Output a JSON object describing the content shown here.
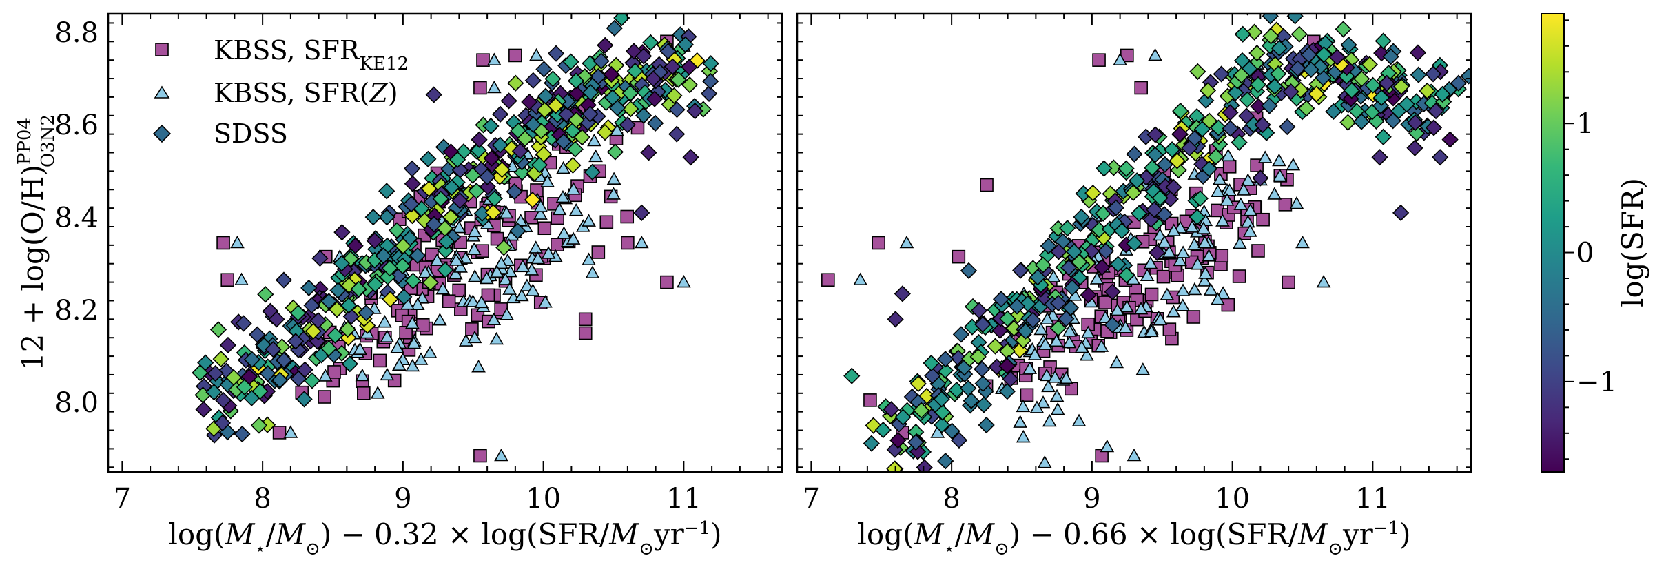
{
  "figure": {
    "description_domain": "Chart",
    "shared_ylabel": "12 + log(O/H)",
    "ylabel_sup": "PP04",
    "ylabel_sub": "O3N2",
    "colorbar": {
      "label": "log(SFR)",
      "range": [
        -1.7,
        1.85
      ],
      "ticks": [
        -1,
        0,
        1
      ],
      "tick_labels": [
        "−1",
        "0",
        "1"
      ],
      "colormap_stops": [
        "#440154",
        "#482878",
        "#3e4989",
        "#31688e",
        "#26828e",
        "#1f9e89",
        "#35b779",
        "#6ece58",
        "#b5de2b",
        "#fde725"
      ]
    },
    "legend": {
      "placement": "top-left",
      "entries": [
        {
          "marker": "square",
          "main": "KBSS, SFR",
          "sub": "KE12",
          "color": "#a6519b"
        },
        {
          "marker": "triangle",
          "main": "KBSS, SFR(",
          "ital": "Z",
          "tail": ")",
          "color": "#8fcbe6"
        },
        {
          "marker": "diamond",
          "main": "SDSS",
          "color": "#2f6b8e"
        }
      ]
    }
  },
  "chart_data": [
    {
      "type": "scatter",
      "panel": "left",
      "xlabel": "log(M★/M⊙) − 0.32 × log(SFR/M⊙yr⁻¹)",
      "xlabel_parts": {
        "a": "log(",
        "m1": "M",
        "star": "⋆",
        "s1": "/",
        "m2": "M",
        "sun": "⊙",
        "b": ") − 0.32 × log(SFR/",
        "m3": "M",
        "sun2": "⊙",
        "c": "yr",
        "sup": "−1",
        "d": ")"
      },
      "xlim": [
        6.9,
        11.7
      ],
      "ylim": [
        7.85,
        8.84
      ],
      "xticks": [
        7,
        8,
        9,
        10,
        11
      ],
      "xtick_labels": [
        "7",
        "8",
        "9",
        "10",
        "11"
      ],
      "yticks": [
        8.0,
        8.2,
        8.4,
        8.6,
        8.8
      ],
      "ytick_labels": [
        "8.0",
        "8.2",
        "8.4",
        "8.6",
        "8.8"
      ],
      "kbss_ke12_highlight": [
        [
          7.72,
          8.345
        ],
        [
          7.75,
          8.265
        ],
        [
          8.12,
          7.935
        ],
        [
          8.45,
          8.315
        ],
        [
          8.72,
          8.02
        ],
        [
          9.55,
          7.885
        ],
        [
          9.57,
          8.74
        ],
        [
          9.55,
          8.68
        ],
        [
          9.8,
          8.75
        ],
        [
          10.15,
          8.575
        ],
        [
          10.3,
          8.15
        ],
        [
          10.3,
          8.18
        ],
        [
          10.4,
          8.5
        ],
        [
          10.45,
          8.39
        ],
        [
          10.6,
          8.345
        ],
        [
          10.88,
          8.78
        ],
        [
          10.88,
          8.26
        ]
      ],
      "kbss_sfrz_highlight": [
        [
          7.82,
          8.345
        ],
        [
          7.85,
          8.265
        ],
        [
          8.2,
          7.935
        ],
        [
          8.55,
          8.315
        ],
        [
          8.82,
          8.02
        ],
        [
          9.7,
          7.885
        ],
        [
          9.65,
          8.74
        ],
        [
          9.65,
          8.68
        ],
        [
          9.95,
          8.75
        ],
        [
          10.25,
          8.575
        ],
        [
          10.35,
          8.28
        ],
        [
          10.5,
          8.45
        ],
        [
          10.7,
          8.345
        ],
        [
          11.0,
          8.26
        ],
        [
          11.0,
          8.77
        ]
      ],
      "sdss_extremes": [
        [
          7.58,
          7.985
        ],
        [
          7.72,
          8.005
        ],
        [
          8.1,
          8.18
        ],
        [
          9.22,
          8.665
        ],
        [
          10.7,
          8.41
        ],
        [
          10.75,
          8.54
        ],
        [
          11.05,
          8.53
        ],
        [
          11.08,
          8.63
        ],
        [
          10.95,
          8.58
        ],
        [
          10.6,
          8.6
        ]
      ]
    },
    {
      "type": "scatter",
      "panel": "right",
      "xlabel": "log(M★/M⊙) − 0.66 × log(SFR/M⊙yr⁻¹)",
      "xlabel_parts": {
        "a": "log(",
        "m1": "M",
        "star": "⋆",
        "s1": "/",
        "m2": "M",
        "sun": "⊙",
        "b": ") − 0.66 × log(SFR/",
        "m3": "M",
        "sun2": "⊙",
        "c": "yr",
        "sup": "−1",
        "d": ")"
      },
      "xlim": [
        6.9,
        11.7
      ],
      "ylim": [
        7.85,
        8.84
      ],
      "xticks": [
        7,
        8,
        9,
        10,
        11
      ],
      "xtick_labels": [
        "7",
        "8",
        "9",
        "10",
        "11"
      ],
      "yticks": [
        8.0,
        8.2,
        8.4,
        8.6,
        8.8
      ],
      "ytick_labels": [
        "",
        "",
        "",
        "",
        ""
      ],
      "kbss_ke12_highlight": [
        [
          7.12,
          8.265
        ],
        [
          7.48,
          8.345
        ],
        [
          7.42,
          8.005
        ],
        [
          7.65,
          7.935
        ],
        [
          8.05,
          8.315
        ],
        [
          8.25,
          8.47
        ],
        [
          9.07,
          7.885
        ],
        [
          9.05,
          8.74
        ],
        [
          9.25,
          8.75
        ],
        [
          9.35,
          8.68
        ],
        [
          10.4,
          8.26
        ],
        [
          10.58,
          8.78
        ]
      ],
      "kbss_sfrz_highlight": [
        [
          7.35,
          8.265
        ],
        [
          7.68,
          8.345
        ],
        [
          7.9,
          7.935
        ],
        [
          9.3,
          7.885
        ],
        [
          9.2,
          8.74
        ],
        [
          9.45,
          8.75
        ],
        [
          10.3,
          8.45
        ],
        [
          10.5,
          8.345
        ],
        [
          10.65,
          8.26
        ]
      ],
      "sdss_extremes": [
        [
          7.57,
          7.985
        ],
        [
          7.65,
          8.235
        ],
        [
          7.6,
          8.18
        ],
        [
          10.2,
          8.485
        ],
        [
          11.2,
          8.41
        ],
        [
          11.45,
          8.63
        ],
        [
          11.48,
          8.53
        ],
        [
          11.3,
          8.55
        ],
        [
          11.1,
          8.69
        ],
        [
          11.05,
          8.53
        ]
      ]
    }
  ]
}
